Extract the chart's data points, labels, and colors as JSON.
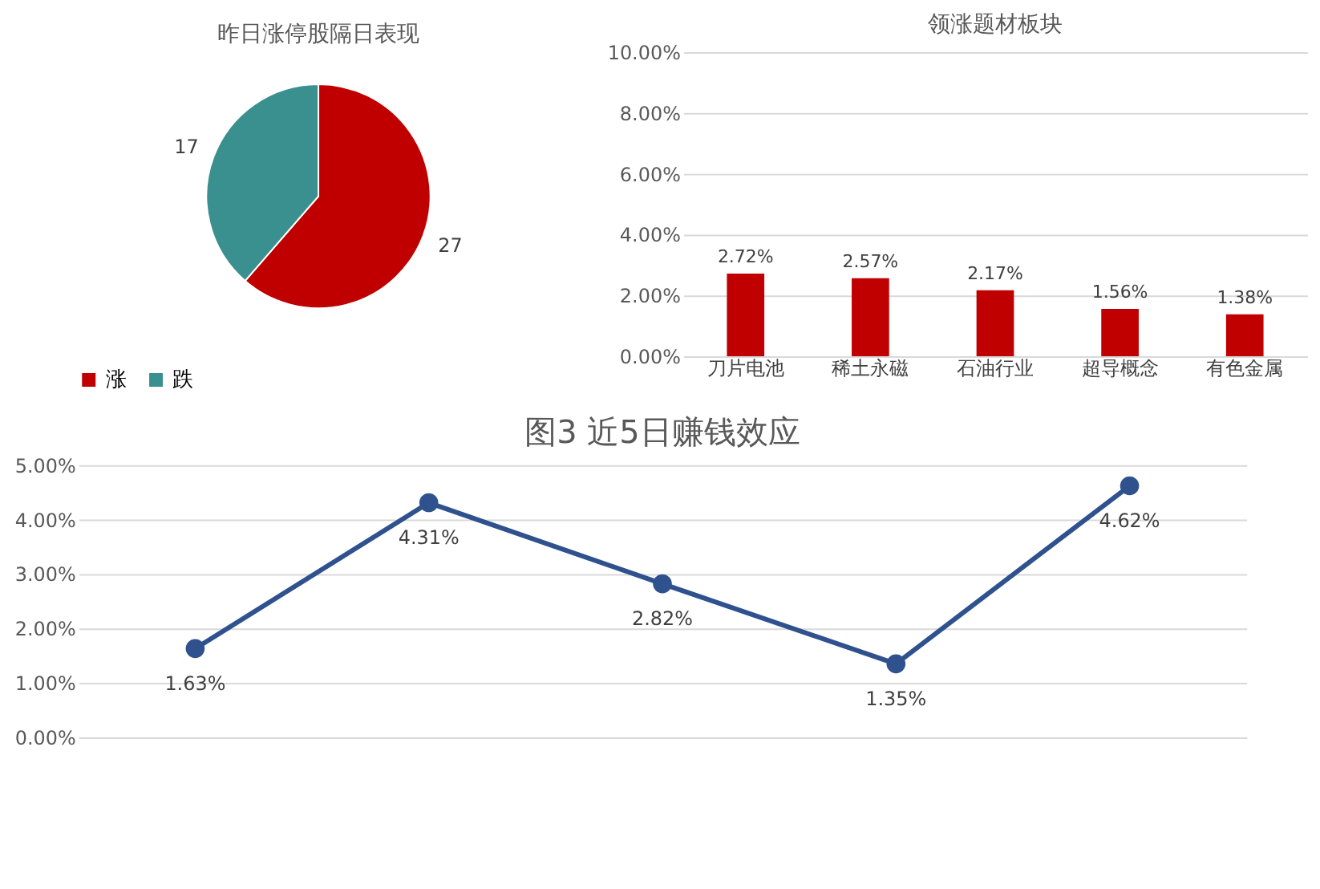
{
  "chart_data": [
    {
      "type": "pie",
      "title": "昨日涨停股隔日表现",
      "categories": [
        "涨",
        "跌"
      ],
      "values": [
        27,
        17
      ],
      "colors": [
        "#c00000",
        "#3a8f8f"
      ],
      "data_labels": true,
      "legend": "bottom"
    },
    {
      "type": "bar",
      "title": "领涨题材板块",
      "categories": [
        "刀片电池",
        "稀土永磁",
        "石油行业",
        "超导概念",
        "有色金属"
      ],
      "values": [
        2.72,
        2.57,
        2.17,
        1.56,
        1.38
      ],
      "color": "#c00000",
      "value_labels": [
        "2.72%",
        "2.57%",
        "2.17%",
        "1.56%",
        "1.38%"
      ],
      "ylim": [
        0,
        10
      ],
      "yticks": [
        {
          "value": 0,
          "label": "0.00%"
        },
        {
          "value": 2,
          "label": "2.00%"
        },
        {
          "value": 4,
          "label": "4.00%"
        },
        {
          "value": 6,
          "label": "6.00%"
        },
        {
          "value": 8,
          "label": "8.00%"
        },
        {
          "value": 10,
          "label": "10.00%"
        }
      ],
      "grid": "y"
    },
    {
      "type": "line",
      "title": "图3 近5日赚钱效应",
      "categories": [
        null,
        null,
        null,
        null,
        null
      ],
      "values": [
        1.63,
        4.31,
        2.82,
        1.35,
        4.62
      ],
      "color": "#2f528f",
      "marker": "circle",
      "line_style": "solid",
      "value_labels": [
        "1.63%",
        "4.31%",
        "2.82%",
        "1.35%",
        "4.62%"
      ],
      "ylim": [
        0,
        5
      ],
      "yticks": [
        {
          "value": 0,
          "label": "0.00%"
        },
        {
          "value": 1,
          "label": "1.00%"
        },
        {
          "value": 2,
          "label": "2.00%"
        },
        {
          "value": 3,
          "label": "3.00%"
        },
        {
          "value": 4,
          "label": "4.00%"
        },
        {
          "value": 5,
          "label": "5.00%"
        }
      ],
      "grid": "y",
      "tick_labels": "y"
    }
  ]
}
